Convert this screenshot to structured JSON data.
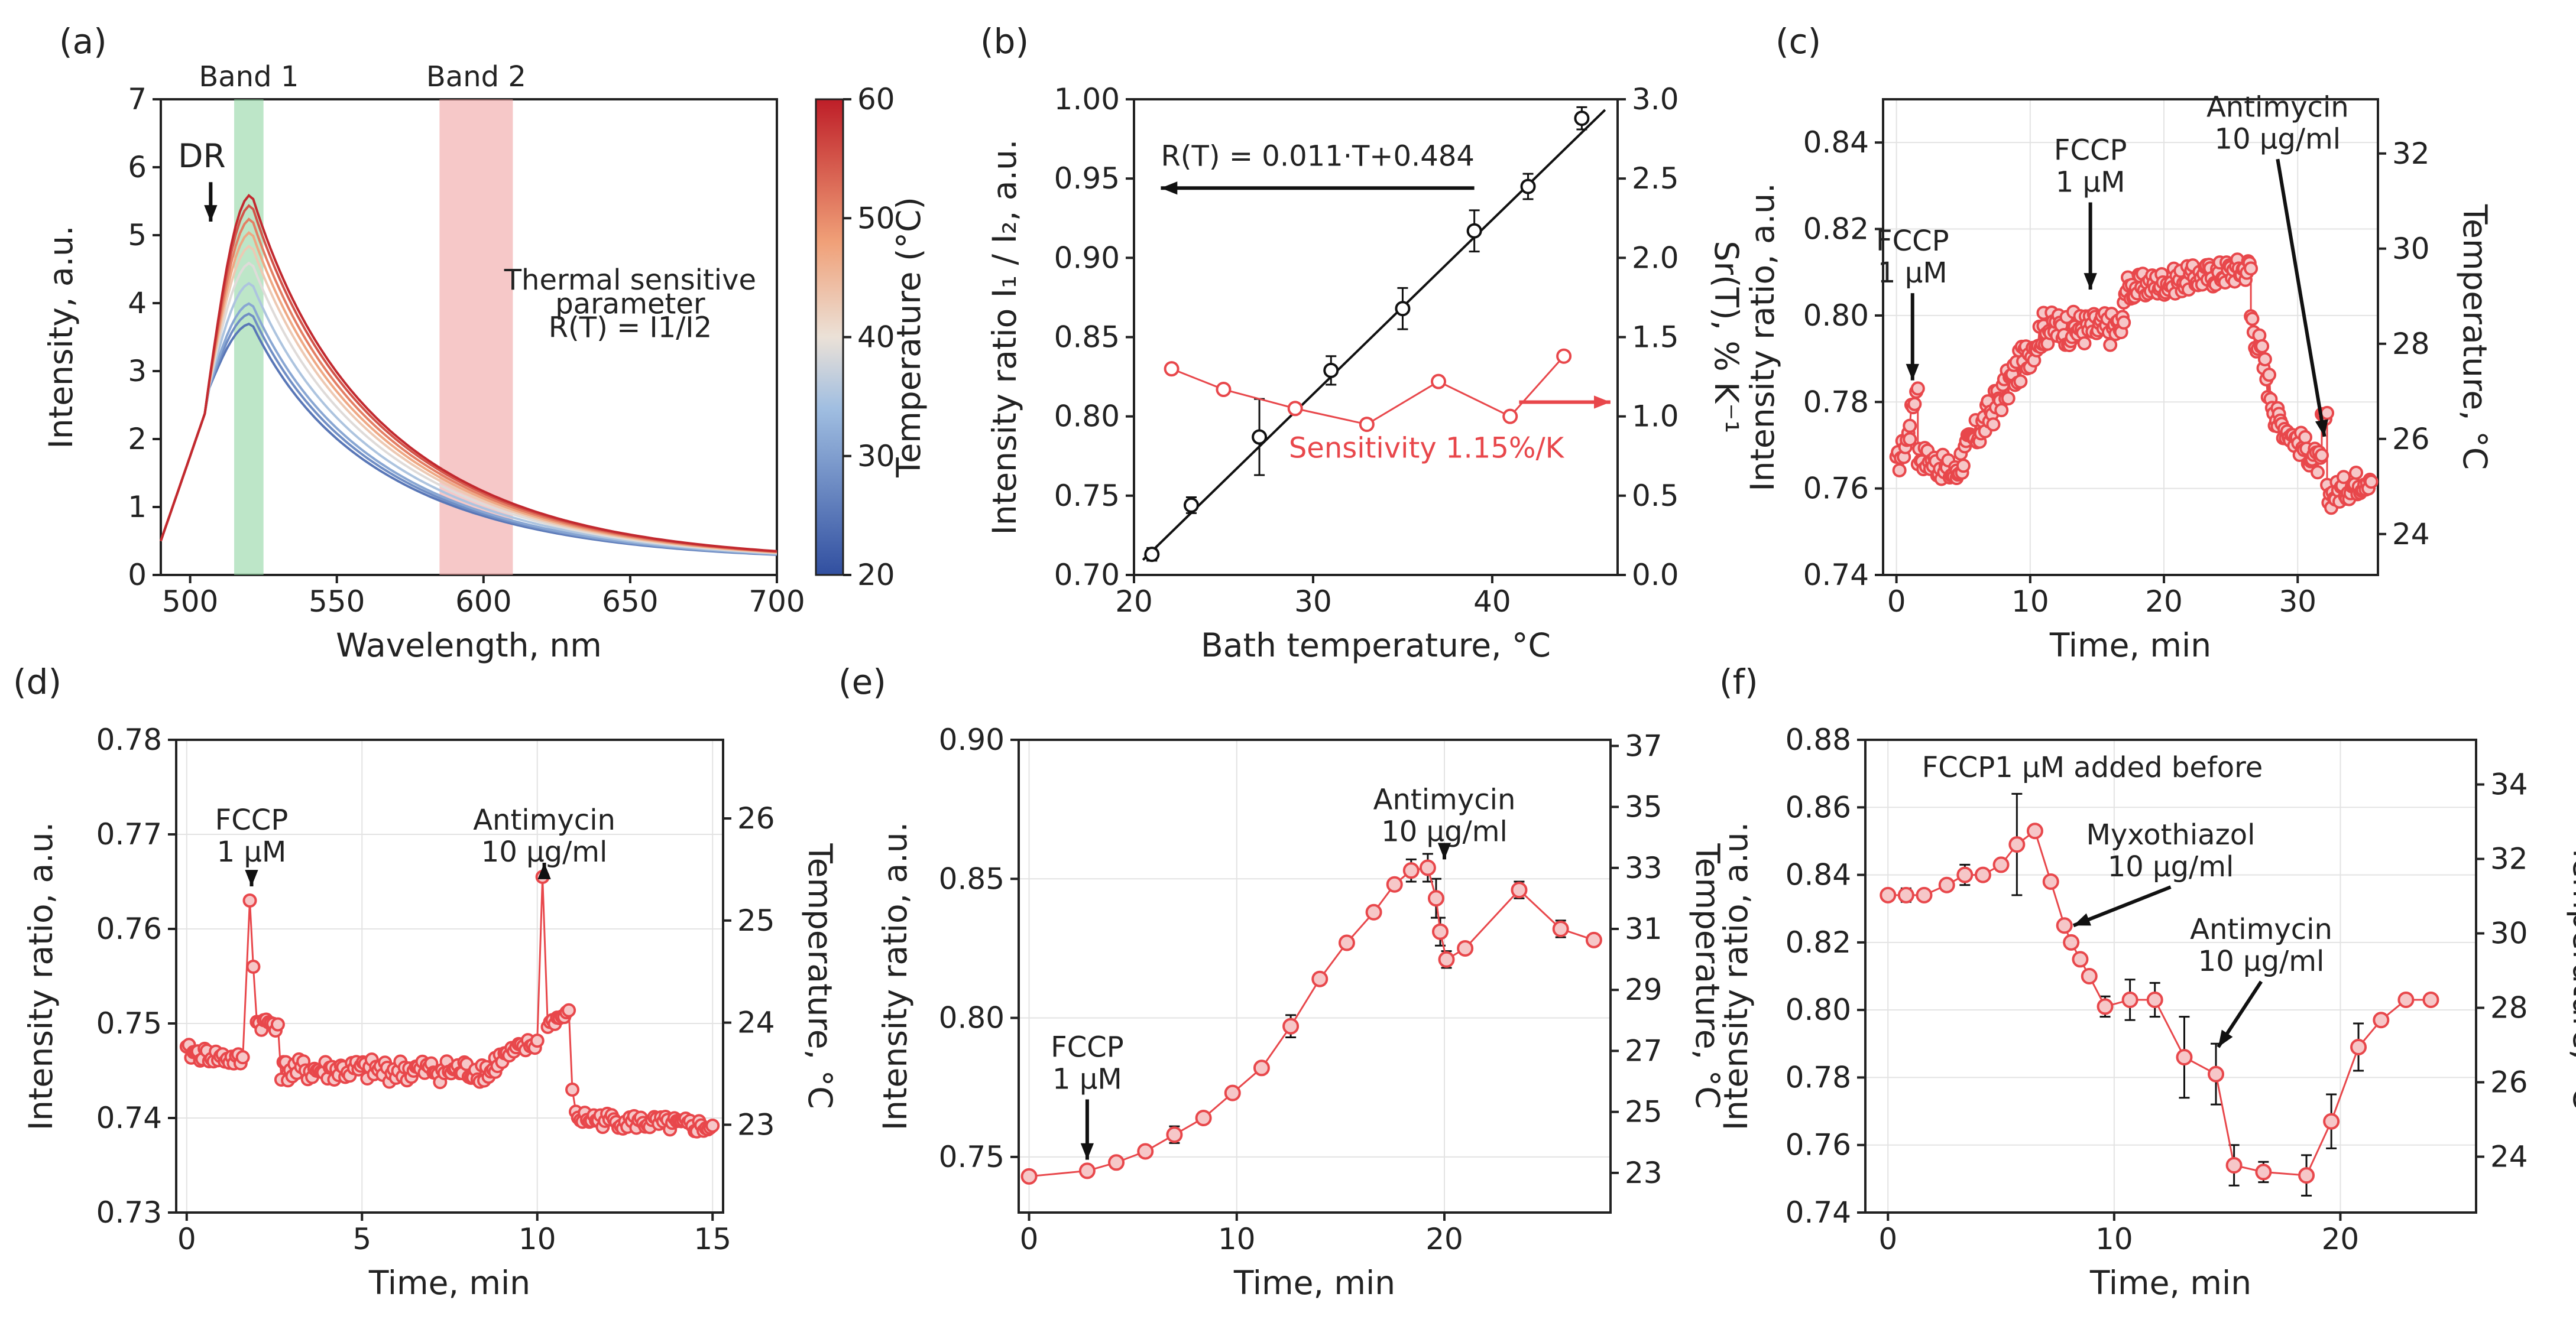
{
  "colors": {
    "red": "#e8474b",
    "marker_fill": "#f6c7c8",
    "band1": "#86d29a",
    "band2": "#ef9a9a",
    "axis": "#222222"
  },
  "chart_data": [
    {
      "panel": "(a)",
      "type": "line",
      "xlabel": "Wavelength, nm",
      "ylabel": "Intensity, a.u.",
      "xlim": [
        490,
        700
      ],
      "ylim": [
        0,
        7
      ],
      "xticks": [
        500,
        550,
        600,
        650,
        700
      ],
      "yticks": [
        0,
        1,
        2,
        3,
        4,
        5,
        6,
        7
      ],
      "bands": [
        {
          "label": "Band 1",
          "x0": 515,
          "x1": 525
        },
        {
          "label": "Band 2",
          "x0": 585,
          "x1": 610
        }
      ],
      "annotations": [
        {
          "text": "DR",
          "x": 507,
          "y": 5.7
        },
        {
          "text": "Thermal sensitive",
          "x": 650,
          "y": 4.2
        },
        {
          "text": "parameter",
          "x": 650,
          "y": 3.85
        },
        {
          "text": "R(T) = I1/I2",
          "x": 650,
          "y": 3.5
        }
      ],
      "colorbar": {
        "label": "Temperature (°C)",
        "min": 20,
        "max": 60,
        "ticks": [
          20,
          30,
          40,
          50,
          60
        ]
      },
      "series": [
        {
          "temperature": 25,
          "peak": 3.7,
          "tail": 0.2
        },
        {
          "temperature": 28,
          "peak": 3.85,
          "tail": 0.2
        },
        {
          "temperature": 31,
          "peak": 4.0,
          "tail": 0.2
        },
        {
          "temperature": 35,
          "peak": 4.3,
          "tail": 0.2
        },
        {
          "temperature": 39,
          "peak": 4.6,
          "tail": 0.2
        },
        {
          "temperature": 43,
          "peak": 4.85,
          "tail": 0.2
        },
        {
          "temperature": 47,
          "peak": 5.05,
          "tail": 0.2
        },
        {
          "temperature": 51,
          "peak": 5.25,
          "tail": 0.2
        },
        {
          "temperature": 55,
          "peak": 5.45,
          "tail": 0.2
        },
        {
          "temperature": 59,
          "peak": 5.6,
          "tail": 0.2
        }
      ]
    },
    {
      "panel": "(b)",
      "type": "line",
      "xlabel": "Bath temperature, °C",
      "ylabel": "Intensity ratio I₁ / I₂, a.u.",
      "y2label": "Sr(T), % K⁻¹",
      "xlim": [
        20,
        47
      ],
      "ylim": [
        0.7,
        1.0
      ],
      "y2lim": [
        0,
        3
      ],
      "xticks": [
        20,
        30,
        40
      ],
      "yticks": [
        0.7,
        0.75,
        0.8,
        0.85,
        0.9,
        0.95,
        1.0
      ],
      "y2ticks": [
        0.0,
        0.5,
        1.0,
        1.5,
        2.0,
        2.5,
        3.0
      ],
      "fit_label": "R(T) = 0.011·T+0.484",
      "fit": {
        "slope": 0.011,
        "intercept": 0.484
      },
      "sensitivity_label": "Sensitivity 1.15%/K",
      "ratio_points": [
        {
          "x": 21,
          "y": 0.713,
          "err": 0.004
        },
        {
          "x": 23.2,
          "y": 0.744,
          "err": 0.005
        },
        {
          "x": 27,
          "y": 0.787,
          "err": 0.024
        },
        {
          "x": 31,
          "y": 0.829,
          "err": 0.009
        },
        {
          "x": 35,
          "y": 0.868,
          "err": 0.013
        },
        {
          "x": 39,
          "y": 0.917,
          "err": 0.013
        },
        {
          "x": 42,
          "y": 0.945,
          "err": 0.008
        },
        {
          "x": 45,
          "y": 0.988,
          "err": 0.007
        }
      ],
      "sensitivity_points": [
        {
          "x": 22.1,
          "y": 1.3
        },
        {
          "x": 25,
          "y": 1.17
        },
        {
          "x": 29,
          "y": 1.05
        },
        {
          "x": 33,
          "y": 0.95
        },
        {
          "x": 37,
          "y": 1.22
        },
        {
          "x": 41,
          "y": 1.0
        },
        {
          "x": 44,
          "y": 1.38
        }
      ]
    },
    {
      "panel": "(c)",
      "type": "scatter",
      "xlabel": "Time, min",
      "ylabel": "Intensity ratio, a.u.",
      "y2label": "Temperature, °C",
      "xlim": [
        -1,
        36
      ],
      "ylim": [
        0.74,
        0.85
      ],
      "y2lim": [
        23.14,
        33.14
      ],
      "xticks": [
        0,
        10,
        20,
        30
      ],
      "yticks": [
        0.74,
        0.76,
        0.78,
        0.8,
        0.82,
        0.84
      ],
      "y2ticks": [
        24,
        26,
        28,
        30,
        32
      ],
      "annotations": [
        {
          "lines": [
            "FCCP",
            "1 μM"
          ],
          "x": 1.2,
          "y": 0.815,
          "arrow_to": [
            1.2,
            0.785
          ]
        },
        {
          "lines": [
            "FCCP",
            "1 μM"
          ],
          "x": 14.5,
          "y": 0.836,
          "arrow_to": [
            14.5,
            0.806
          ]
        },
        {
          "lines": [
            "Antimycin",
            "10 μg/ml"
          ],
          "x": 28.5,
          "y": 0.846,
          "arrow_to": [
            32,
            0.772
          ]
        }
      ],
      "segments": [
        {
          "t0": 0,
          "t1": 1.0,
          "v0": 0.765,
          "v1": 0.773,
          "noise": 0.003
        },
        {
          "t0": 1.0,
          "t1": 1.6,
          "v0": 0.776,
          "v1": 0.784,
          "noise": 0.002
        },
        {
          "t0": 1.6,
          "t1": 4.5,
          "v0": 0.768,
          "v1": 0.763,
          "noise": 0.003
        },
        {
          "t0": 4.5,
          "t1": 11,
          "v0": 0.765,
          "v1": 0.797,
          "noise": 0.004
        },
        {
          "t0": 11,
          "t1": 17,
          "v0": 0.797,
          "v1": 0.797,
          "noise": 0.004
        },
        {
          "t0": 17,
          "t1": 26.5,
          "v0": 0.806,
          "v1": 0.811,
          "noise": 0.003
        },
        {
          "t0": 26.5,
          "t1": 28.5,
          "v0": 0.8,
          "v1": 0.776,
          "noise": 0.004
        },
        {
          "t0": 28.5,
          "t1": 31.8,
          "v0": 0.776,
          "v1": 0.765,
          "noise": 0.003
        },
        {
          "t0": 31.8,
          "t1": 32.2,
          "v0": 0.776,
          "v1": 0.776,
          "noise": 0.002
        },
        {
          "t0": 32.2,
          "t1": 35.5,
          "v0": 0.758,
          "v1": 0.763,
          "noise": 0.003
        }
      ]
    },
    {
      "panel": "(d)",
      "type": "scatter",
      "xlabel": "Time, min",
      "ylabel": "Intensity ratio, a.u.",
      "y2label": "Temperature, °C",
      "xlim": [
        -0.3,
        15.3
      ],
      "ylim": [
        0.73,
        0.78
      ],
      "y2lim": [
        22.14,
        26.77
      ],
      "xticks": [
        0,
        5,
        10,
        15
      ],
      "yticks": [
        0.73,
        0.74,
        0.75,
        0.76,
        0.77,
        0.78
      ],
      "y2ticks": [
        23,
        24,
        25,
        26
      ],
      "annotations": [
        {
          "lines": [
            "FCCP",
            "1 μM"
          ],
          "x": 1.85,
          "y": 0.7705,
          "arrow_to": [
            1.85,
            0.7645
          ]
        },
        {
          "lines": [
            "Antimycin",
            "10 μg/ml"
          ],
          "x": 10.2,
          "y": 0.7705,
          "arrow_to": [
            10.2,
            0.767
          ]
        }
      ],
      "segments": [
        {
          "t0": 0,
          "t1": 1.6,
          "v0": 0.747,
          "v1": 0.746,
          "noise": 0.0008
        },
        {
          "t0": 1.8,
          "t1": 1.8,
          "v0": 0.763,
          "v1": 0.763,
          "noise": 0
        },
        {
          "t0": 1.9,
          "t1": 1.9,
          "v0": 0.756,
          "v1": 0.756,
          "noise": 0
        },
        {
          "t0": 2.0,
          "t1": 2.6,
          "v0": 0.75,
          "v1": 0.75,
          "noise": 0.0008
        },
        {
          "t0": 2.7,
          "t1": 8.8,
          "v0": 0.745,
          "v1": 0.745,
          "noise": 0.0012
        },
        {
          "t0": 8.8,
          "t1": 10.0,
          "v0": 0.746,
          "v1": 0.748,
          "noise": 0.0008
        },
        {
          "t0": 10.15,
          "t1": 10.15,
          "v0": 0.7655,
          "v1": 0.7655,
          "noise": 0
        },
        {
          "t0": 10.3,
          "t1": 10.9,
          "v0": 0.75,
          "v1": 0.751,
          "noise": 0.0005
        },
        {
          "t0": 11.0,
          "t1": 11.0,
          "v0": 0.743,
          "v1": 0.743,
          "noise": 0
        },
        {
          "t0": 11.1,
          "t1": 15.0,
          "v0": 0.74,
          "v1": 0.739,
          "noise": 0.0008
        }
      ]
    },
    {
      "panel": "(e)",
      "type": "line",
      "xlabel": "Time, min",
      "ylabel": "Intensity ratio, a.u.",
      "y2label": "Temperature, °C",
      "xlim": [
        -0.5,
        28
      ],
      "ylim": [
        0.73,
        0.9
      ],
      "y2lim": [
        21.7,
        37.2
      ],
      "xticks": [
        0,
        10,
        20
      ],
      "yticks": [
        0.75,
        0.8,
        0.85,
        0.9
      ],
      "y2ticks": [
        23,
        25,
        27,
        29,
        31,
        33,
        35,
        37
      ],
      "annotations": [
        {
          "lines": [
            "FCCP",
            "1 μM"
          ],
          "x": 2.8,
          "y": 0.786,
          "arrow_to": [
            2.8,
            0.749
          ]
        },
        {
          "lines": [
            "Antimycin",
            "10 μg/ml"
          ],
          "x": 20,
          "y": 0.875,
          "arrow_to": [
            20,
            0.857
          ]
        }
      ],
      "points": [
        {
          "x": 0,
          "y": 0.743,
          "err": 0
        },
        {
          "x": 2.8,
          "y": 0.745,
          "err": 0
        },
        {
          "x": 4.2,
          "y": 0.748,
          "err": 0
        },
        {
          "x": 5.6,
          "y": 0.752,
          "err": 0
        },
        {
          "x": 7.0,
          "y": 0.758,
          "err": 0.003
        },
        {
          "x": 8.4,
          "y": 0.764,
          "err": 0.002
        },
        {
          "x": 9.8,
          "y": 0.773,
          "err": 0
        },
        {
          "x": 11.2,
          "y": 0.782,
          "err": 0
        },
        {
          "x": 12.6,
          "y": 0.797,
          "err": 0.004
        },
        {
          "x": 14.0,
          "y": 0.814,
          "err": 0.002
        },
        {
          "x": 15.3,
          "y": 0.827,
          "err": 0
        },
        {
          "x": 16.6,
          "y": 0.838,
          "err": 0.002
        },
        {
          "x": 17.6,
          "y": 0.848,
          "err": 0.002
        },
        {
          "x": 18.4,
          "y": 0.853,
          "err": 0.004
        },
        {
          "x": 19.2,
          "y": 0.854,
          "err": 0.005
        },
        {
          "x": 19.6,
          "y": 0.843,
          "err": 0.007
        },
        {
          "x": 19.8,
          "y": 0.831,
          "err": 0.005
        },
        {
          "x": 20.1,
          "y": 0.821,
          "err": 0.003
        },
        {
          "x": 21.0,
          "y": 0.825,
          "err": 0.002
        },
        {
          "x": 23.6,
          "y": 0.846,
          "err": 0.003
        },
        {
          "x": 25.6,
          "y": 0.832,
          "err": 0.003
        },
        {
          "x": 27.2,
          "y": 0.828,
          "err": 0
        }
      ]
    },
    {
      "panel": "(f)",
      "type": "line",
      "xlabel": "Time, min",
      "ylabel": "Intensity ratio, a.u.",
      "y2label": "Temperature, °C",
      "xlim": [
        -1,
        26
      ],
      "ylim": [
        0.74,
        0.88
      ],
      "y2lim": [
        22.5,
        35.2
      ],
      "xticks": [
        0,
        10,
        20
      ],
      "yticks": [
        0.74,
        0.76,
        0.78,
        0.8,
        0.82,
        0.84,
        0.86,
        0.88
      ],
      "y2ticks": [
        24,
        26,
        28,
        30,
        32,
        34
      ],
      "annotations": [
        {
          "lines": [
            "FCCP1 μM added before"
          ],
          "x": 1.5,
          "y": 0.869,
          "arrow_to": null
        },
        {
          "lines": [
            "Myxothiazol",
            "10 μg/ml"
          ],
          "x": 12.5,
          "y": 0.849,
          "arrow_to": [
            8.2,
            0.825
          ]
        },
        {
          "lines": [
            "Antimycin",
            "10 μg/ml"
          ],
          "x": 16.5,
          "y": 0.821,
          "arrow_to": [
            14.6,
            0.789
          ]
        }
      ],
      "points": [
        {
          "x": 0,
          "y": 0.834,
          "err": 0
        },
        {
          "x": 0.8,
          "y": 0.834,
          "err": 0.002
        },
        {
          "x": 1.6,
          "y": 0.834,
          "err": 0
        },
        {
          "x": 2.6,
          "y": 0.837,
          "err": 0
        },
        {
          "x": 3.4,
          "y": 0.84,
          "err": 0.003
        },
        {
          "x": 4.2,
          "y": 0.84,
          "err": 0
        },
        {
          "x": 5.0,
          "y": 0.843,
          "err": 0
        },
        {
          "x": 5.7,
          "y": 0.849,
          "err": 0.015
        },
        {
          "x": 6.5,
          "y": 0.853,
          "err": 0
        },
        {
          "x": 7.2,
          "y": 0.838,
          "err": 0
        },
        {
          "x": 7.8,
          "y": 0.825,
          "err": 0
        },
        {
          "x": 8.1,
          "y": 0.82,
          "err": 0
        },
        {
          "x": 8.5,
          "y": 0.815,
          "err": 0
        },
        {
          "x": 8.9,
          "y": 0.81,
          "err": 0
        },
        {
          "x": 9.6,
          "y": 0.801,
          "err": 0.003
        },
        {
          "x": 10.7,
          "y": 0.803,
          "err": 0.006
        },
        {
          "x": 11.8,
          "y": 0.803,
          "err": 0.005
        },
        {
          "x": 13.1,
          "y": 0.786,
          "err": 0.012
        },
        {
          "x": 14.5,
          "y": 0.781,
          "err": 0.009
        },
        {
          "x": 15.3,
          "y": 0.754,
          "err": 0.006
        },
        {
          "x": 16.6,
          "y": 0.752,
          "err": 0.003
        },
        {
          "x": 18.5,
          "y": 0.751,
          "err": 0.006
        },
        {
          "x": 19.6,
          "y": 0.767,
          "err": 0.008
        },
        {
          "x": 20.8,
          "y": 0.789,
          "err": 0.007
        },
        {
          "x": 21.8,
          "y": 0.797,
          "err": 0
        },
        {
          "x": 22.9,
          "y": 0.803,
          "err": 0
        },
        {
          "x": 24.0,
          "y": 0.803,
          "err": 0
        }
      ]
    }
  ]
}
